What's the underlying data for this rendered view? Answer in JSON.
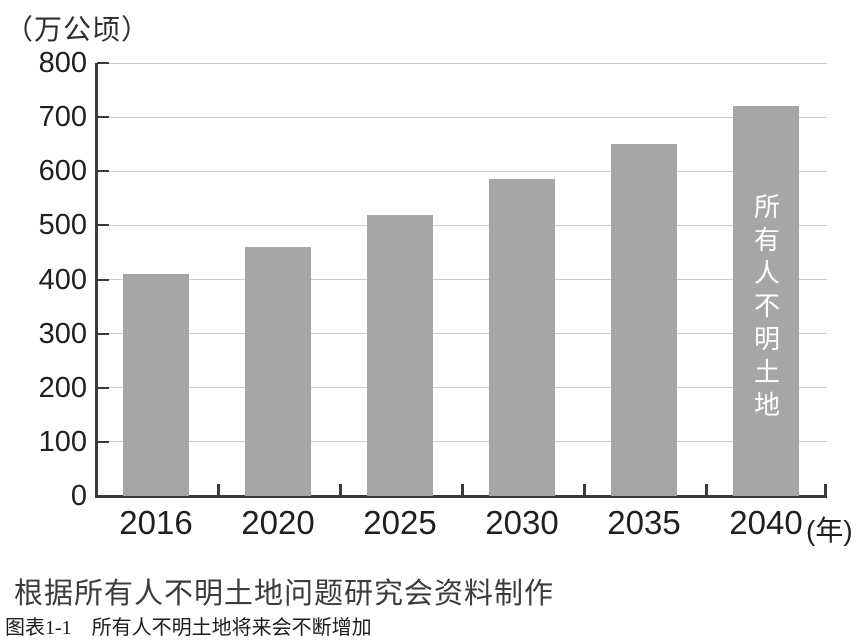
{
  "chart_data": {
    "type": "bar",
    "categories": [
      "2016",
      "2020",
      "2025",
      "2030",
      "2035",
      "2040"
    ],
    "values": [
      410,
      460,
      520,
      585,
      650,
      720
    ],
    "title": "",
    "unit_label": "（万公顷）",
    "x_axis_suffix": "(年)",
    "xlabel": "",
    "ylabel": "",
    "ylim": [
      0,
      800
    ],
    "yticks": [
      0,
      100,
      200,
      300,
      400,
      500,
      600,
      700,
      800
    ],
    "grid": true,
    "legend_position": "none",
    "last_bar_annotation": "所有人不明土地",
    "colors": {
      "bar": "#a6a6a6",
      "axis": "#3a3a3a",
      "gridline": "#cdcdcd",
      "bar_annotation_text": "#ffffff"
    }
  },
  "source_note": "根据所有人不明土地问题研究会资料制作",
  "caption": "图表1-1　所有人不明土地将来会不断增加"
}
